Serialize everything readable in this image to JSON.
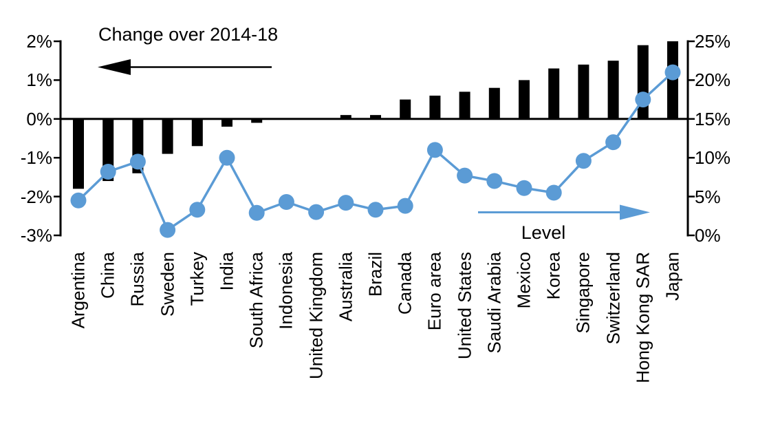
{
  "chart_data": {
    "type": "combo-bar-line",
    "categories": [
      "Argentina",
      "China",
      "Russia",
      "Sweden",
      "Turkey",
      "India",
      "South Africa",
      "Indonesia",
      "United Kingdom",
      "Australia",
      "Brazil",
      "Canada",
      "Euro area",
      "United States",
      "Saudi Arabia",
      "Mexico",
      "Korea",
      "Singapore",
      "Switzerland",
      "Hong Kong SAR",
      "Japan"
    ],
    "series": [
      {
        "name": "Change over 2014-18",
        "type": "bar",
        "axis": "left",
        "color": "#000000",
        "arrow_direction": "left",
        "values": [
          -1.8,
          -1.6,
          -1.4,
          -0.9,
          -0.7,
          -0.2,
          -0.1,
          0.0,
          0.0,
          0.1,
          0.1,
          0.5,
          0.6,
          0.7,
          0.8,
          1.0,
          1.3,
          1.4,
          1.5,
          1.9,
          2.0
        ]
      },
      {
        "name": "Level",
        "type": "line",
        "axis": "right",
        "color": "#5B9BD5",
        "arrow_direction": "right",
        "values": [
          4.5,
          8.2,
          9.5,
          0.7,
          3.3,
          10.0,
          2.9,
          4.3,
          3.0,
          4.2,
          3.3,
          3.8,
          11.0,
          7.7,
          7.0,
          6.1,
          5.5,
          9.6,
          12.0,
          17.5,
          21.0
        ]
      }
    ],
    "left_axis": {
      "min": -3,
      "max": 2,
      "tick_values": [
        2,
        1,
        0,
        -1,
        -2,
        -3
      ],
      "tick_labels": [
        "2%",
        "1%",
        "0%",
        "-1%",
        "-2%",
        "-3%"
      ],
      "unit": "%"
    },
    "right_axis": {
      "min": 0,
      "max": 25,
      "tick_values": [
        25,
        20,
        15,
        10,
        5,
        0
      ],
      "tick_labels": [
        "25%",
        "20%",
        "15%",
        "10%",
        "5%",
        "0%"
      ],
      "unit": "%"
    },
    "grid": "off",
    "legend_position": "in-plot-annotations"
  }
}
